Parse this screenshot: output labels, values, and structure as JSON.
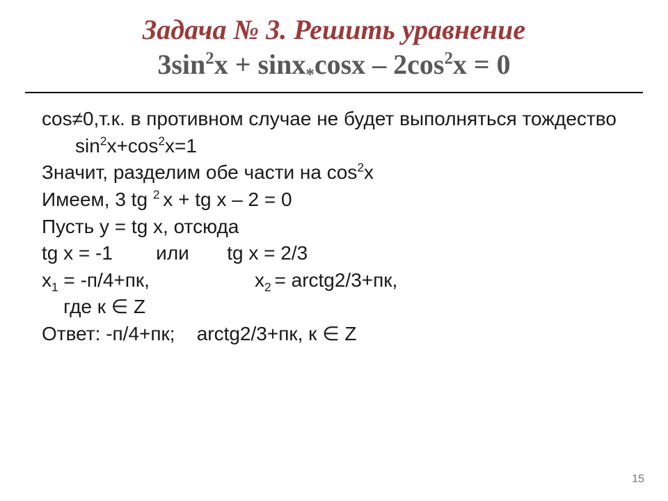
{
  "title": {
    "line1": "Задача № 3. Решить уравнение",
    "line2_html": "3sin<sup>2</sup>x + sinx<sub>*</sub>cosx – 2cos<sup>2</sup>x = 0"
  },
  "body": {
    "l1_html": "cos≠0,т.к. в противном случае не будет выполняться тождество sin<sup>2</sup>x+cos<sup>2</sup>x=1",
    "l2_html": "Значит, разделим обе части на cos<sup>2</sup>x",
    "l3_html": "Имеем, 3 tg&nbsp;<sup>2&nbsp;</sup>x + tg x – 2 = 0",
    "l4": "Пусть y = tg x, отсюда",
    "l5": "tg x = -1        или       tg x = 2/3",
    "root1_html": "x<sub>1</sub> = -п/4+пк,",
    "root2_html": "x<sub>2 </sub>= arctg2/3+пк,",
    "l7": "    где к ∈ Z",
    "l8": "Ответ: -п/4+пк;    arctg2/3+пк, к ∈ Z"
  },
  "page_number": "15",
  "colors": {
    "title_accent": "#9a3a3a",
    "title_secondary": "#595959",
    "text": "#1a1a1a",
    "divider": "#000000",
    "page_num": "#777777",
    "background": "#ffffff"
  },
  "typography": {
    "title_font": "Times New Roman",
    "title_size_pt": 40,
    "body_font": "Arial",
    "body_size_pt": 28
  }
}
